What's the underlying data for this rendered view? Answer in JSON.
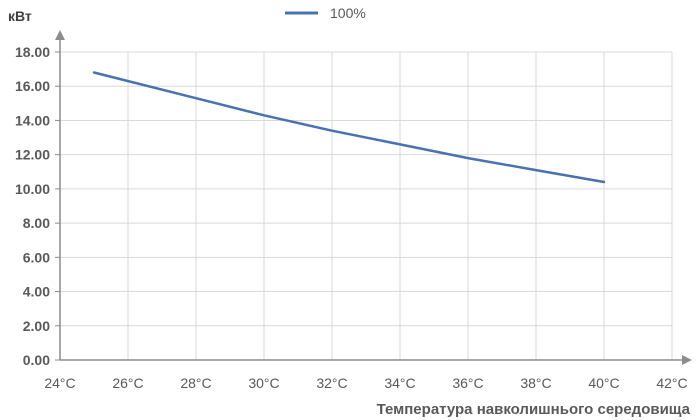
{
  "chart_data": {
    "type": "line",
    "title": "",
    "ylabel": "кВт",
    "xlabel": "Температура навколишнього середовища",
    "x_ticks": [
      "24°C",
      "26°C",
      "28°C",
      "30°C",
      "32°C",
      "34°C",
      "36°C",
      "38°C",
      "40°C",
      "42°C"
    ],
    "y_ticks": [
      "0.00",
      "2.00",
      "4.00",
      "6.00",
      "8.00",
      "10.00",
      "12.00",
      "14.00",
      "16.00",
      "18.00"
    ],
    "xlim": [
      24,
      42
    ],
    "ylim": [
      0,
      18
    ],
    "grid": true,
    "legend_position": "top",
    "series": [
      {
        "name": "100%",
        "color": "#4a72b0",
        "x": [
          25,
          28,
          30,
          32,
          34,
          36,
          38,
          40
        ],
        "y": [
          16.8,
          15.3,
          14.3,
          13.4,
          12.6,
          11.8,
          11.1,
          10.4
        ]
      }
    ]
  }
}
